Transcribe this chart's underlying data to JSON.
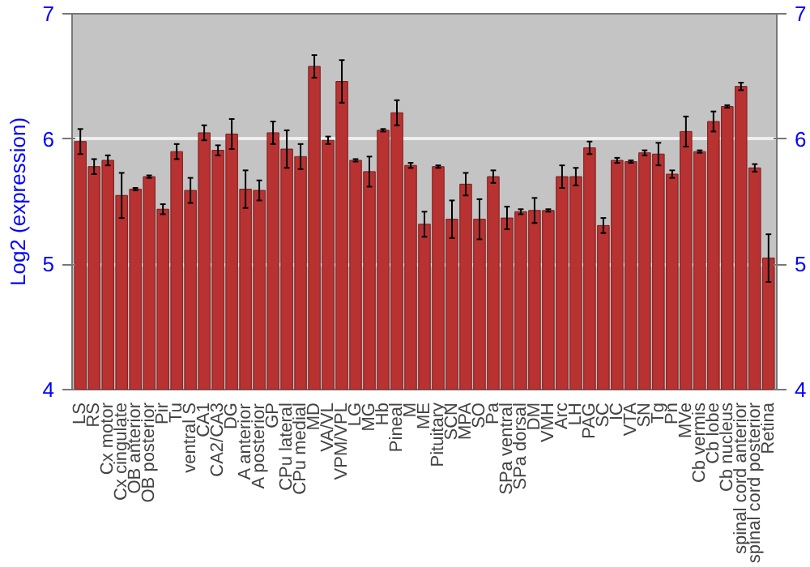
{
  "chart_data": {
    "type": "bar",
    "ylabel": "Log2 (expression)",
    "categories": [
      "LS",
      "RS",
      "Cx motor",
      "Cx cingulate",
      "OB anterior",
      "OB posterior",
      "Pir",
      "Tu",
      "ventral S",
      "CA1",
      "CA2/CA3",
      "DG",
      "A anterior",
      "A posterior",
      "GP",
      "CPu lateral",
      "CPu medial",
      "MD",
      "VA/VL",
      "VPM/VPL",
      "LG",
      "MG",
      "Hb",
      "Pineal",
      "M",
      "ME",
      "Pituitary",
      "SCN",
      "MPA",
      "SO",
      "Pa",
      "SPa ventral",
      "SPa dorsal",
      "DM",
      "VMH",
      "Arc",
      "LH",
      "PAG",
      "SC",
      "IC",
      "VTA",
      "SN",
      "Tg",
      "Pn",
      "MVe",
      "Cb vermis",
      "Cb lobe",
      "Cb nucleus",
      "spinal cord anterior",
      "spinal cord posterior",
      "Retina"
    ],
    "values": [
      5.98,
      5.78,
      5.83,
      5.55,
      5.6,
      5.7,
      5.44,
      5.9,
      5.59,
      6.05,
      5.91,
      6.04,
      5.6,
      5.59,
      6.05,
      5.92,
      5.86,
      6.58,
      5.99,
      6.46,
      5.83,
      5.74,
      6.07,
      6.21,
      5.79,
      5.32,
      5.78,
      5.36,
      5.64,
      5.36,
      5.7,
      5.37,
      5.42,
      5.43,
      5.43,
      5.7,
      5.7,
      5.93,
      5.31,
      5.83,
      5.82,
      5.89,
      5.88,
      5.72,
      6.06,
      5.9,
      6.14,
      6.26,
      6.42,
      5.77,
      5.05
    ],
    "errors": [
      0.1,
      0.06,
      0.04,
      0.18,
      0.01,
      0.01,
      0.04,
      0.06,
      0.1,
      0.06,
      0.04,
      0.12,
      0.15,
      0.08,
      0.09,
      0.15,
      0.1,
      0.09,
      0.03,
      0.17,
      0.01,
      0.12,
      0.01,
      0.1,
      0.02,
      0.1,
      0.01,
      0.15,
      0.09,
      0.16,
      0.05,
      0.09,
      0.02,
      0.1,
      0.01,
      0.09,
      0.07,
      0.05,
      0.06,
      0.02,
      0.01,
      0.02,
      0.09,
      0.03,
      0.12,
      0.01,
      0.08,
      0.01,
      0.03,
      0.03,
      0.19
    ],
    "color": "#b83232",
    "ylim": [
      4,
      7
    ],
    "yticks": [
      4,
      5,
      6,
      7
    ],
    "y2lim": [
      4,
      7
    ],
    "y2ticks": [
      4,
      5,
      6,
      7
    ],
    "grid": "y"
  }
}
